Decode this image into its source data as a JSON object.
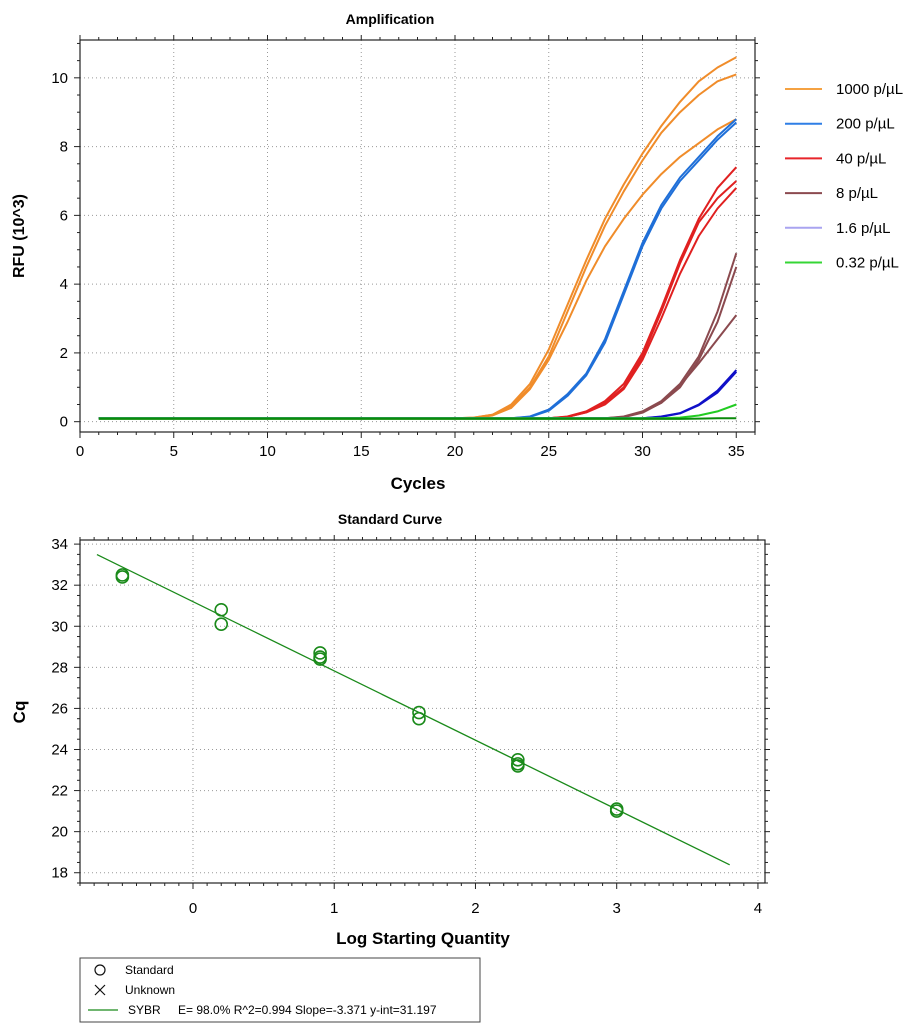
{
  "chart_data": [
    {
      "type": "line",
      "title": "Amplification",
      "xlabel": "Cycles",
      "ylabel": "RFU (10^3)",
      "xlim": [
        0,
        36
      ],
      "ylim": [
        -0.3,
        11.1
      ],
      "xticks": [
        0,
        5,
        10,
        15,
        20,
        25,
        30,
        35
      ],
      "yticks": [
        0,
        2,
        4,
        6,
        8,
        10
      ],
      "grid": "dotted",
      "legend_position": "right",
      "legend": [
        {
          "label": "1000 p/µL",
          "color": "#f5a242"
        },
        {
          "label": "200 p/µL",
          "color": "#2f7fe6"
        },
        {
          "label": "40 p/µL",
          "color": "#e8252a"
        },
        {
          "label": "8 p/µL",
          "color": "#8b4a4f"
        },
        {
          "label": "1.6 p/µL",
          "color": "#a9a4f0"
        },
        {
          "label": "0.32 p/µL",
          "color": "#35d635"
        }
      ],
      "x": [
        1,
        20,
        21,
        22,
        23,
        24,
        25,
        26,
        27,
        28,
        29,
        30,
        31,
        32,
        33,
        34,
        35
      ],
      "series": [
        {
          "name": "1000 p/µL",
          "color": "#f08c2a",
          "values": [
            0.1,
            0.1,
            0.12,
            0.2,
            0.5,
            1.1,
            2.1,
            3.4,
            4.7,
            5.9,
            6.9,
            7.8,
            8.6,
            9.3,
            9.9,
            10.3,
            10.6
          ]
        },
        {
          "name": "1000 p/µL",
          "color": "#f08c2a",
          "values": [
            0.1,
            0.1,
            0.12,
            0.2,
            0.45,
            1.0,
            1.9,
            3.2,
            4.5,
            5.7,
            6.7,
            7.6,
            8.4,
            9.0,
            9.5,
            9.9,
            10.1
          ]
        },
        {
          "name": "1000 p/µL",
          "color": "#f08c2a",
          "values": [
            0.1,
            0.1,
            0.11,
            0.18,
            0.4,
            0.95,
            1.8,
            2.9,
            4.1,
            5.1,
            5.9,
            6.6,
            7.2,
            7.7,
            8.1,
            8.5,
            8.8
          ]
        },
        {
          "name": "200 p/µL",
          "color": "#1f6fd8",
          "values": [
            0.1,
            0.1,
            0.1,
            0.1,
            0.1,
            0.15,
            0.35,
            0.8,
            1.4,
            2.4,
            3.8,
            5.2,
            6.3,
            7.1,
            7.7,
            8.3,
            8.8
          ]
        },
        {
          "name": "200 p/µL",
          "color": "#1f6fd8",
          "values": [
            0.1,
            0.1,
            0.1,
            0.1,
            0.1,
            0.14,
            0.32,
            0.75,
            1.35,
            2.3,
            3.7,
            5.1,
            6.2,
            7.0,
            7.6,
            8.2,
            8.7
          ]
        },
        {
          "name": "40 p/µL",
          "color": "#e02020",
          "values": [
            0.1,
            0.1,
            0.1,
            0.1,
            0.1,
            0.1,
            0.1,
            0.15,
            0.3,
            0.6,
            1.1,
            2.0,
            3.3,
            4.7,
            5.9,
            6.8,
            7.4
          ]
        },
        {
          "name": "40 p/µL",
          "color": "#e02020",
          "values": [
            0.1,
            0.1,
            0.1,
            0.1,
            0.1,
            0.1,
            0.1,
            0.14,
            0.28,
            0.55,
            1.0,
            1.9,
            3.2,
            4.6,
            5.8,
            6.5,
            7.0
          ]
        },
        {
          "name": "40 p/µL",
          "color": "#e02020",
          "values": [
            0.1,
            0.1,
            0.1,
            0.1,
            0.1,
            0.1,
            0.1,
            0.14,
            0.27,
            0.5,
            0.95,
            1.8,
            3.0,
            4.3,
            5.4,
            6.2,
            6.8
          ]
        },
        {
          "name": "8 p/µL",
          "color": "#8b4a4f",
          "values": [
            0.1,
            0.1,
            0.1,
            0.1,
            0.1,
            0.1,
            0.1,
            0.1,
            0.1,
            0.1,
            0.15,
            0.3,
            0.6,
            1.1,
            1.9,
            3.2,
            4.9
          ]
        },
        {
          "name": "8 p/µL",
          "color": "#8b4a4f",
          "values": [
            0.1,
            0.1,
            0.1,
            0.1,
            0.1,
            0.1,
            0.1,
            0.1,
            0.1,
            0.1,
            0.14,
            0.28,
            0.55,
            1.0,
            1.8,
            2.9,
            4.5
          ]
        },
        {
          "name": "8 p/µL",
          "color": "#8b4a4f",
          "values": [
            0.1,
            0.1,
            0.1,
            0.1,
            0.1,
            0.1,
            0.1,
            0.1,
            0.1,
            0.1,
            0.13,
            0.26,
            0.55,
            1.05,
            1.7,
            2.4,
            3.1
          ]
        },
        {
          "name": "1.6 p/µL",
          "color": "#1010c8",
          "values": [
            0.1,
            0.1,
            0.1,
            0.1,
            0.1,
            0.1,
            0.1,
            0.1,
            0.1,
            0.1,
            0.1,
            0.1,
            0.15,
            0.25,
            0.5,
            0.9,
            1.5
          ]
        },
        {
          "name": "1.6 p/µL",
          "color": "#1010c8",
          "values": [
            0.1,
            0.1,
            0.1,
            0.1,
            0.1,
            0.1,
            0.1,
            0.1,
            0.1,
            0.1,
            0.1,
            0.1,
            0.14,
            0.24,
            0.48,
            0.85,
            1.45
          ]
        },
        {
          "name": "0.32 p/µL",
          "color": "#22cc22",
          "values": [
            0.1,
            0.1,
            0.1,
            0.1,
            0.1,
            0.1,
            0.1,
            0.1,
            0.1,
            0.1,
            0.1,
            0.1,
            0.1,
            0.12,
            0.18,
            0.3,
            0.5
          ]
        },
        {
          "name": "0.32 p/µL",
          "color": "#0a8a0a",
          "values": [
            0.08,
            0.08,
            0.08,
            0.08,
            0.08,
            0.08,
            0.08,
            0.08,
            0.08,
            0.08,
            0.08,
            0.08,
            0.08,
            0.08,
            0.09,
            0.1,
            0.1
          ]
        }
      ]
    },
    {
      "type": "scatter",
      "title": "Standard Curve",
      "xlabel": "Log Starting Quantity",
      "ylabel": "Cq",
      "xlim": [
        -0.8,
        4.05
      ],
      "ylim": [
        17.5,
        34.2
      ],
      "xticks": [
        0,
        1,
        2,
        3,
        4
      ],
      "yticks": [
        18,
        20,
        22,
        24,
        26,
        28,
        30,
        32,
        34
      ],
      "grid": "dotted",
      "color": "#1a8a1a",
      "points": [
        {
          "x": -0.5,
          "y": 32.5
        },
        {
          "x": -0.5,
          "y": 32.4
        },
        {
          "x": 0.2,
          "y": 30.8
        },
        {
          "x": 0.2,
          "y": 30.1
        },
        {
          "x": 0.9,
          "y": 28.7
        },
        {
          "x": 0.9,
          "y": 28.5
        },
        {
          "x": 0.9,
          "y": 28.4
        },
        {
          "x": 1.6,
          "y": 25.8
        },
        {
          "x": 1.6,
          "y": 25.5
        },
        {
          "x": 2.3,
          "y": 23.5
        },
        {
          "x": 2.3,
          "y": 23.3
        },
        {
          "x": 2.3,
          "y": 23.2
        },
        {
          "x": 3.0,
          "y": 21.1
        },
        {
          "x": 3.0,
          "y": 21.0
        }
      ],
      "fit_line": {
        "x0": -0.68,
        "x1": 3.8,
        "slope": -3.371,
        "intercept": 31.197
      },
      "legend": {
        "standard": "Standard",
        "unknown": "Unknown",
        "fit_name": "SYBR",
        "fit_stats": "E= 98.0% R^2=0.994 Slope=-3.371 y-int=31.197"
      }
    }
  ]
}
